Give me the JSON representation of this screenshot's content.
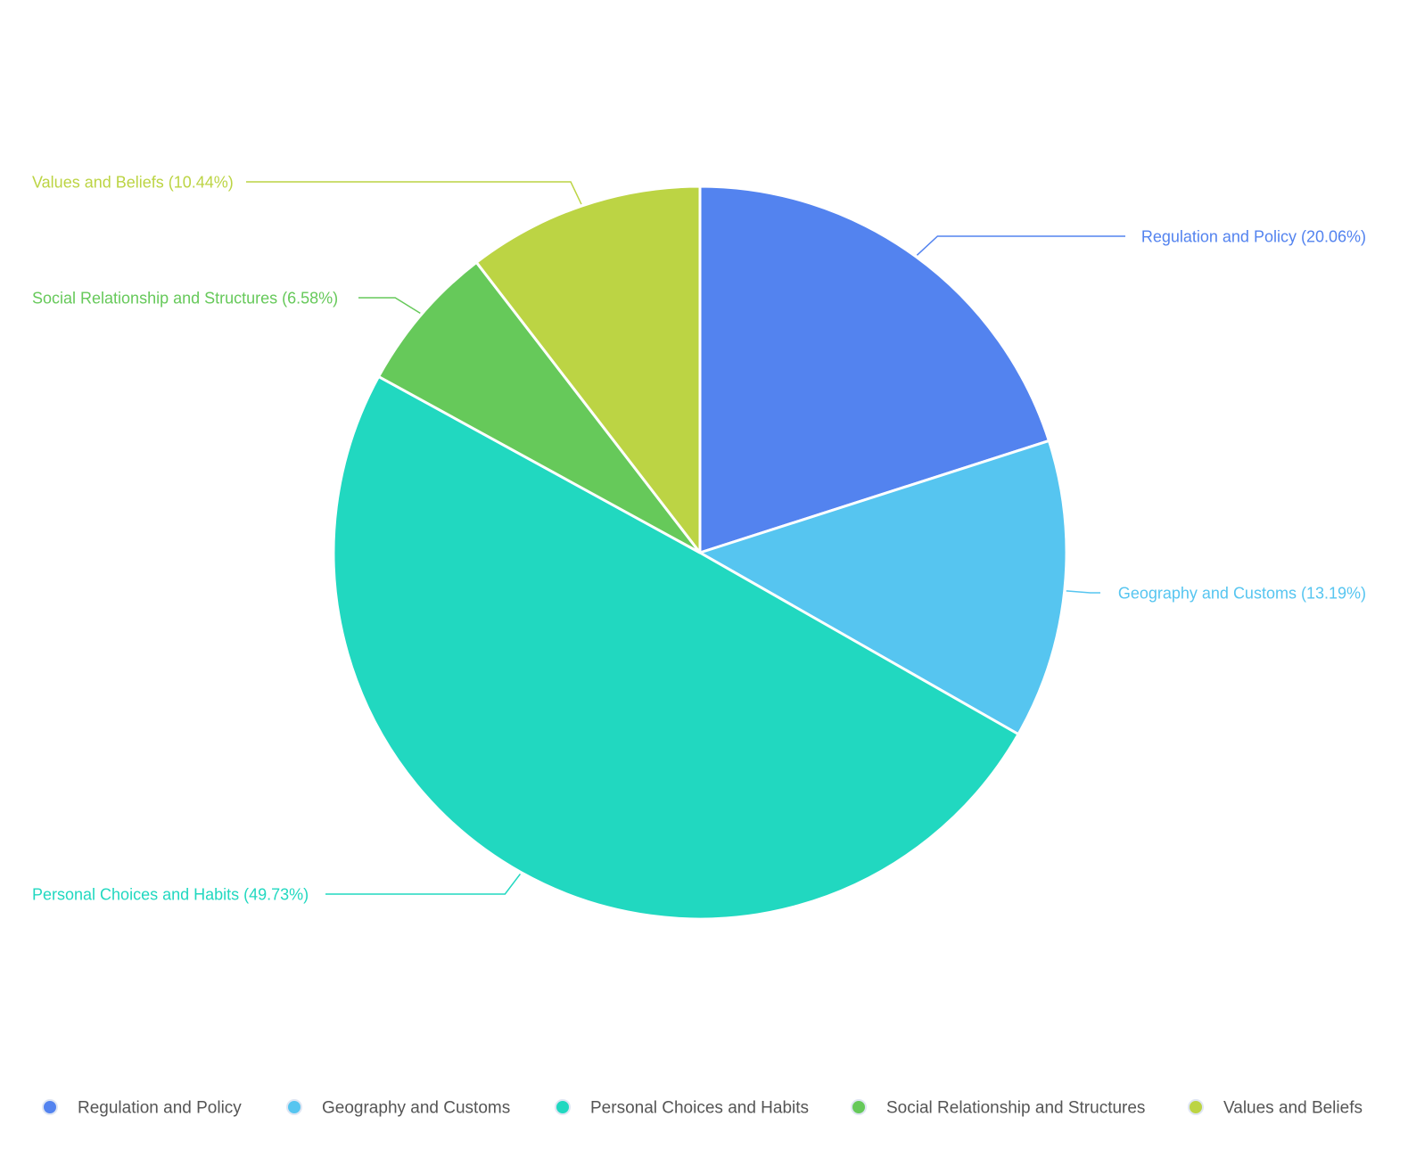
{
  "chart_data": {
    "type": "pie",
    "categories": [
      "Regulation and Policy",
      "Geography and Customs",
      "Personal Choices and Habits",
      "Social Relationship and Structures",
      "Values and Beliefs"
    ],
    "values": [
      20.06,
      13.19,
      49.73,
      6.58,
      10.44
    ],
    "slice_labels": [
      "Regulation and Policy (20.06%)",
      "Geography and Customs (13.19%)",
      "Personal Choices and Habits (49.73%)",
      "Social Relationship and Structures (6.58%)",
      "Values and Beliefs (10.44%)"
    ],
    "colors": [
      "#5383ef",
      "#56c5f0",
      "#21d8c0",
      "#66c95a",
      "#bcd444"
    ],
    "legend": {
      "position": "bottom",
      "items": [
        {
          "label": "Regulation and Policy",
          "color": "#5383ef"
        },
        {
          "label": "Geography and Customs",
          "color": "#56c5f0"
        },
        {
          "label": "Personal Choices and Habits",
          "color": "#21d8c0"
        },
        {
          "label": "Social Relationship and Structures",
          "color": "#66c95a"
        },
        {
          "label": "Values and Beliefs",
          "color": "#bcd444"
        }
      ]
    }
  }
}
